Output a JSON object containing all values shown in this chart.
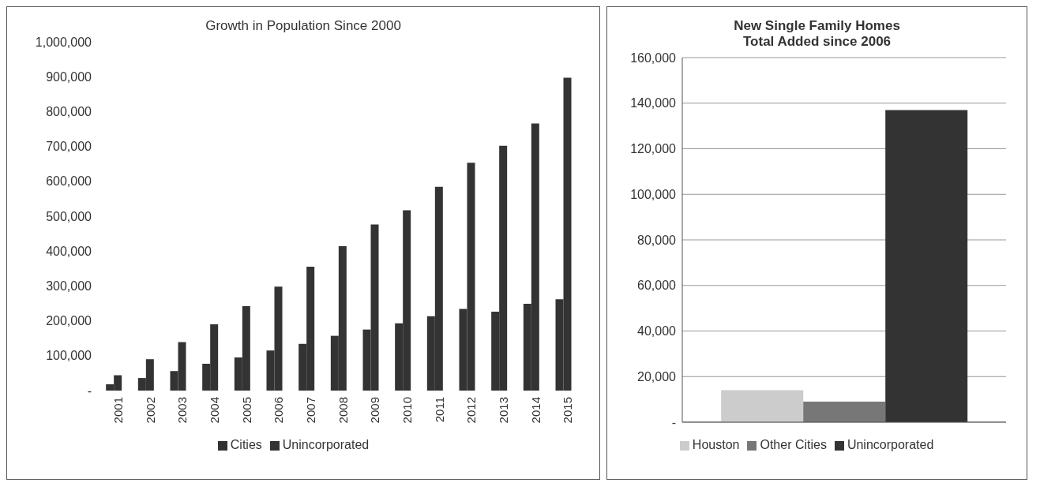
{
  "chart_data": [
    {
      "type": "bar",
      "title": "Growth in Population Since 2000",
      "categories": [
        "2001",
        "2002",
        "2003",
        "2004",
        "2005",
        "2006",
        "2007",
        "2008",
        "2009",
        "2010",
        "2011",
        "2012",
        "2013",
        "2014",
        "2015"
      ],
      "series": [
        {
          "name": "Cities",
          "color": "#333333",
          "values": [
            18000,
            36000,
            56000,
            77000,
            95000,
            115000,
            134000,
            157000,
            175000,
            193000,
            213000,
            234000,
            226000,
            249000,
            262000
          ]
        },
        {
          "name": "Unincorporated",
          "color": "#333333",
          "values": [
            44000,
            90000,
            139000,
            190000,
            242000,
            298000,
            355000,
            414000,
            476000,
            517000,
            584000,
            653000,
            702000,
            766000,
            897000
          ]
        }
      ],
      "ylim": [
        0,
        1000000
      ],
      "yticks": [
        {
          "value": 0,
          "label": "-"
        },
        {
          "value": 100000,
          "label": "100,000"
        },
        {
          "value": 200000,
          "label": "200,000"
        },
        {
          "value": 300000,
          "label": "300,000"
        },
        {
          "value": 400000,
          "label": "400,000"
        },
        {
          "value": 500000,
          "label": "500,000"
        },
        {
          "value": 600000,
          "label": "600,000"
        },
        {
          "value": 700000,
          "label": "700,000"
        },
        {
          "value": 800000,
          "label": "800,000"
        },
        {
          "value": 900000,
          "label": "900,000"
        },
        {
          "value": 1000000,
          "label": "1,000,000"
        }
      ],
      "legend": "bottom"
    },
    {
      "type": "bar",
      "title": "New Single Family Homes",
      "subtitle": "Total Added since 2006",
      "categories": [
        null
      ],
      "series": [
        {
          "name": "Houston",
          "color": "#cccccc",
          "values": [
            14000
          ]
        },
        {
          "name": "Other Cities",
          "color": "#777777",
          "values": [
            9000
          ]
        },
        {
          "name": "Unincorporated",
          "color": "#333333",
          "values": [
            137000
          ]
        }
      ],
      "ylim": [
        0,
        160000
      ],
      "yticks": [
        {
          "value": 0,
          "label": "-"
        },
        {
          "value": 20000,
          "label": "20,000"
        },
        {
          "value": 40000,
          "label": "40,000"
        },
        {
          "value": 60000,
          "label": "60,000"
        },
        {
          "value": 80000,
          "label": "80,000"
        },
        {
          "value": 100000,
          "label": "100,000"
        },
        {
          "value": 120000,
          "label": "120,000"
        },
        {
          "value": 140000,
          "label": "140,000"
        },
        {
          "value": 160000,
          "label": "160,000"
        }
      ],
      "grid": "y",
      "legend": "bottom"
    }
  ]
}
